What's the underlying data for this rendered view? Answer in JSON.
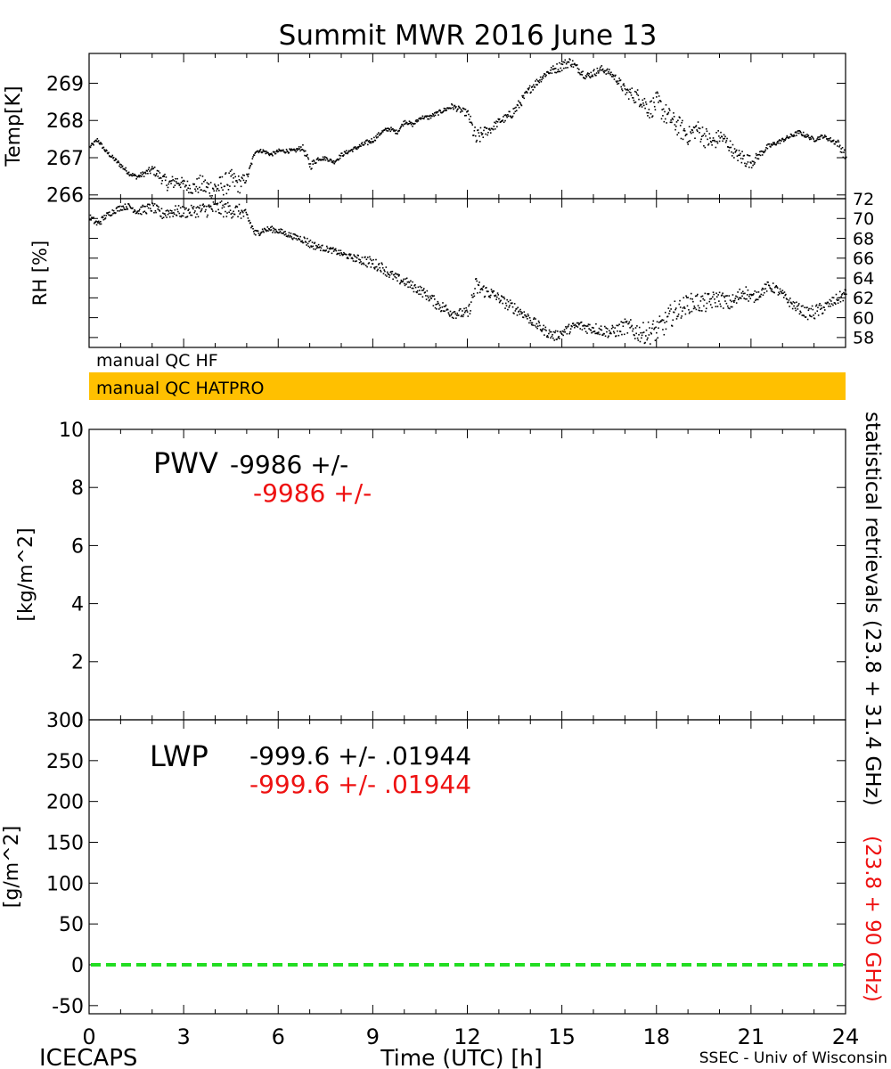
{
  "title": "Summit MWR 2016 June 13",
  "colors": {
    "axis": "#000000",
    "series_black": "#000000",
    "series_red": "#ee1111",
    "qc_hatpro_bar": "#ffc000",
    "zero_line": "#22dd22"
  },
  "qc": {
    "hf_label": "manual QC HF",
    "hatpro_label": "manual QC HATPRO"
  },
  "pwv_text": {
    "name": "PWV",
    "hf": "-9986 +/-",
    "hatpro": "-9986 +/-"
  },
  "lwp_text": {
    "name": "LWP",
    "hf": "-999.6 +/- .01944",
    "hatpro": "-999.6 +/- .01944"
  },
  "right_labels": {
    "black": "statistical retrievals (23.8 + 31.4 GHz)",
    "red": "(23.8 + 90 GHz)"
  },
  "footer": {
    "left": "ICECAPS",
    "center": "Time (UTC) [h]",
    "right": "SSEC - Univ of Wisconsin"
  },
  "chart_data": [
    {
      "type": "scatter",
      "panel": "temperature",
      "ylabel": "Temp[K]",
      "xlim": [
        0,
        24
      ],
      "ylim": [
        265.9,
        269.8
      ],
      "yticks": [
        "266",
        "267",
        "268",
        "269"
      ],
      "x": [
        0,
        0.25,
        0.5,
        0.75,
        1,
        1.25,
        1.5,
        1.75,
        2,
        2.25,
        2.5,
        2.75,
        3,
        3.25,
        3.5,
        3.75,
        4,
        4.25,
        4.5,
        4.75,
        5,
        5.25,
        5.5,
        5.75,
        6,
        6.25,
        6.5,
        6.75,
        7,
        7.25,
        7.5,
        7.75,
        8,
        8.25,
        8.5,
        8.75,
        9,
        9.25,
        9.5,
        9.75,
        10,
        10.25,
        10.5,
        10.75,
        11,
        11.25,
        11.5,
        11.75,
        12,
        12.25,
        12.5,
        12.75,
        13,
        13.25,
        13.5,
        13.75,
        14,
        14.25,
        14.5,
        14.75,
        15,
        15.25,
        15.5,
        15.75,
        16,
        16.25,
        16.5,
        16.75,
        17,
        17.25,
        17.5,
        17.75,
        18,
        18.25,
        18.5,
        18.75,
        19,
        19.25,
        19.5,
        19.75,
        20,
        20.25,
        20.5,
        20.75,
        21,
        21.25,
        21.5,
        21.75,
        22,
        22.25,
        22.5,
        22.75,
        23,
        23.25,
        23.5,
        23.75,
        24
      ],
      "y": [
        267.3,
        267.5,
        267.2,
        267.0,
        266.8,
        266.6,
        266.5,
        266.6,
        266.7,
        266.5,
        266.3,
        266.4,
        266.3,
        266.2,
        266.3,
        266.2,
        266.2,
        266.3,
        266.4,
        266.3,
        266.5,
        267.2,
        267.2,
        267.1,
        267.2,
        267.2,
        267.2,
        267.3,
        266.8,
        267.0,
        267.0,
        266.9,
        267.1,
        267.2,
        267.3,
        267.4,
        267.5,
        267.7,
        267.8,
        267.7,
        268.0,
        267.9,
        268.1,
        268.1,
        268.2,
        268.3,
        268.4,
        268.3,
        268.2,
        267.5,
        267.7,
        267.8,
        268.0,
        268.1,
        268.3,
        268.6,
        268.9,
        269.1,
        269.3,
        269.4,
        269.5,
        269.6,
        269.4,
        269.2,
        269.3,
        269.4,
        269.3,
        269.1,
        268.8,
        268.7,
        268.6,
        268.3,
        268.5,
        268.2,
        268.0,
        267.8,
        267.6,
        267.8,
        267.6,
        267.4,
        267.6,
        267.4,
        267.1,
        267.0,
        266.9,
        267.1,
        267.3,
        267.4,
        267.5,
        267.6,
        267.7,
        267.6,
        267.5,
        267.6,
        267.5,
        267.4,
        267.0
      ],
      "noise": [
        0.05,
        0.06,
        0.05,
        0.06,
        0.07,
        0.06,
        0.06,
        0.08,
        0.12,
        0.15,
        0.2,
        0.18,
        0.15,
        0.18,
        0.25,
        0.3,
        0.25,
        0.3,
        0.3,
        0.25,
        0.1,
        0.05,
        0.05,
        0.05,
        0.05,
        0.06,
        0.05,
        0.08,
        0.12,
        0.06,
        0.05,
        0.05,
        0.06,
        0.05,
        0.06,
        0.08,
        0.07,
        0.06,
        0.06,
        0.05,
        0.06,
        0.05,
        0.05,
        0.06,
        0.06,
        0.06,
        0.08,
        0.08,
        0.1,
        0.3,
        0.15,
        0.12,
        0.1,
        0.12,
        0.15,
        0.12,
        0.12,
        0.1,
        0.1,
        0.12,
        0.15,
        0.12,
        0.1,
        0.1,
        0.1,
        0.1,
        0.08,
        0.12,
        0.15,
        0.2,
        0.25,
        0.25,
        0.3,
        0.3,
        0.25,
        0.3,
        0.25,
        0.25,
        0.3,
        0.25,
        0.2,
        0.2,
        0.15,
        0.25,
        0.15,
        0.1,
        0.08,
        0.06,
        0.06,
        0.06,
        0.06,
        0.06,
        0.05,
        0.05,
        0.06,
        0.1,
        0.15
      ]
    },
    {
      "type": "scatter",
      "panel": "relative_humidity",
      "ylabel": "RH [%]",
      "xlim": [
        0,
        24
      ],
      "ylim": [
        57,
        72
      ],
      "yticks": [
        "58",
        "60",
        "62",
        "64",
        "66",
        "68",
        "70",
        "72"
      ],
      "x": [
        0,
        0.25,
        0.5,
        0.75,
        1,
        1.25,
        1.5,
        1.75,
        2,
        2.25,
        2.5,
        2.75,
        3,
        3.25,
        3.5,
        3.75,
        4,
        4.25,
        4.5,
        4.75,
        5,
        5.25,
        5.5,
        5.75,
        6,
        6.25,
        6.5,
        6.75,
        7,
        7.25,
        7.5,
        7.75,
        8,
        8.25,
        8.5,
        8.75,
        9,
        9.25,
        9.5,
        9.75,
        10,
        10.25,
        10.5,
        10.75,
        11,
        11.25,
        11.5,
        11.75,
        12,
        12.25,
        12.5,
        12.75,
        13,
        13.25,
        13.5,
        13.75,
        14,
        14.25,
        14.5,
        14.75,
        15,
        15.25,
        15.5,
        15.75,
        16,
        16.25,
        16.5,
        16.75,
        17,
        17.25,
        17.5,
        17.75,
        18,
        18.25,
        18.5,
        18.75,
        19,
        19.25,
        19.5,
        19.75,
        20,
        20.25,
        20.5,
        20.75,
        21,
        21.25,
        21.5,
        21.75,
        22,
        22.25,
        22.5,
        22.75,
        23,
        23.25,
        23.5,
        23.75,
        24
      ],
      "y": [
        70.2,
        69.5,
        70.3,
        70.8,
        71.2,
        71.3,
        70.8,
        71.0,
        71.2,
        70.5,
        70.7,
        70.8,
        70.7,
        70.8,
        70.9,
        71.0,
        71.1,
        71.0,
        70.9,
        70.8,
        70.2,
        68.5,
        68.9,
        69.0,
        68.8,
        68.5,
        68.2,
        68.0,
        67.5,
        67.2,
        67.0,
        66.8,
        66.5,
        66.2,
        66.0,
        65.8,
        65.5,
        65.2,
        64.5,
        64.0,
        63.7,
        63.2,
        62.8,
        62.2,
        61.5,
        61.0,
        60.6,
        60.5,
        60.5,
        63.2,
        62.8,
        62.5,
        62.0,
        61.4,
        61.0,
        60.5,
        59.8,
        59.2,
        58.6,
        58.2,
        58.6,
        59.0,
        59.3,
        59.1,
        59.0,
        58.8,
        58.6,
        58.8,
        59.2,
        58.8,
        58.5,
        58.6,
        58.8,
        59.5,
        60.5,
        61.0,
        61.5,
        61.6,
        61.5,
        61.8,
        62.0,
        61.5,
        61.8,
        62.8,
        62.0,
        62.5,
        63.2,
        63.0,
        62.3,
        61.5,
        61.0,
        60.5,
        60.6,
        61.0,
        61.5,
        62.0,
        62.5
      ],
      "noise": [
        0.3,
        0.4,
        0.3,
        0.3,
        0.3,
        0.3,
        0.4,
        0.5,
        0.5,
        0.6,
        0.6,
        0.6,
        0.6,
        0.6,
        0.7,
        0.8,
        0.8,
        0.8,
        0.8,
        0.7,
        0.6,
        0.4,
        0.3,
        0.3,
        0.3,
        0.3,
        0.3,
        0.4,
        0.5,
        0.3,
        0.3,
        0.3,
        0.3,
        0.3,
        0.4,
        0.6,
        0.6,
        0.5,
        0.5,
        0.5,
        0.5,
        0.5,
        0.5,
        0.5,
        0.6,
        0.6,
        0.6,
        0.5,
        0.6,
        1.0,
        0.7,
        0.6,
        0.5,
        0.6,
        0.6,
        0.5,
        0.5,
        0.5,
        0.5,
        0.5,
        0.5,
        0.5,
        0.5,
        0.6,
        0.6,
        0.6,
        0.6,
        0.7,
        0.8,
        1.0,
        1.0,
        1.2,
        1.2,
        1.2,
        1.2,
        1.0,
        1.0,
        1.0,
        1.0,
        0.9,
        0.8,
        0.8,
        0.8,
        0.8,
        0.6,
        0.5,
        0.5,
        0.5,
        0.5,
        0.5,
        0.5,
        0.6,
        0.8,
        0.6,
        0.5,
        0.6,
        0.6
      ]
    },
    {
      "type": "line",
      "panel": "pwv",
      "ylabel": "[kg/m^2]",
      "xlim": [
        0,
        24
      ],
      "ylim": [
        0,
        10
      ],
      "yticks": [
        "0",
        "2",
        "4",
        "6",
        "8",
        "10"
      ],
      "series": []
    },
    {
      "type": "line",
      "panel": "lwp",
      "ylabel": "[g/m^2]",
      "xlim": [
        0,
        24
      ],
      "ylim": [
        -60,
        300
      ],
      "yticks": [
        "-50",
        "0",
        "50",
        "100",
        "150",
        "200",
        "250",
        "300"
      ],
      "xticks": [
        "0",
        "3",
        "6",
        "9",
        "12",
        "15",
        "18",
        "21",
        "24"
      ],
      "zero_line": 0,
      "series": []
    }
  ]
}
